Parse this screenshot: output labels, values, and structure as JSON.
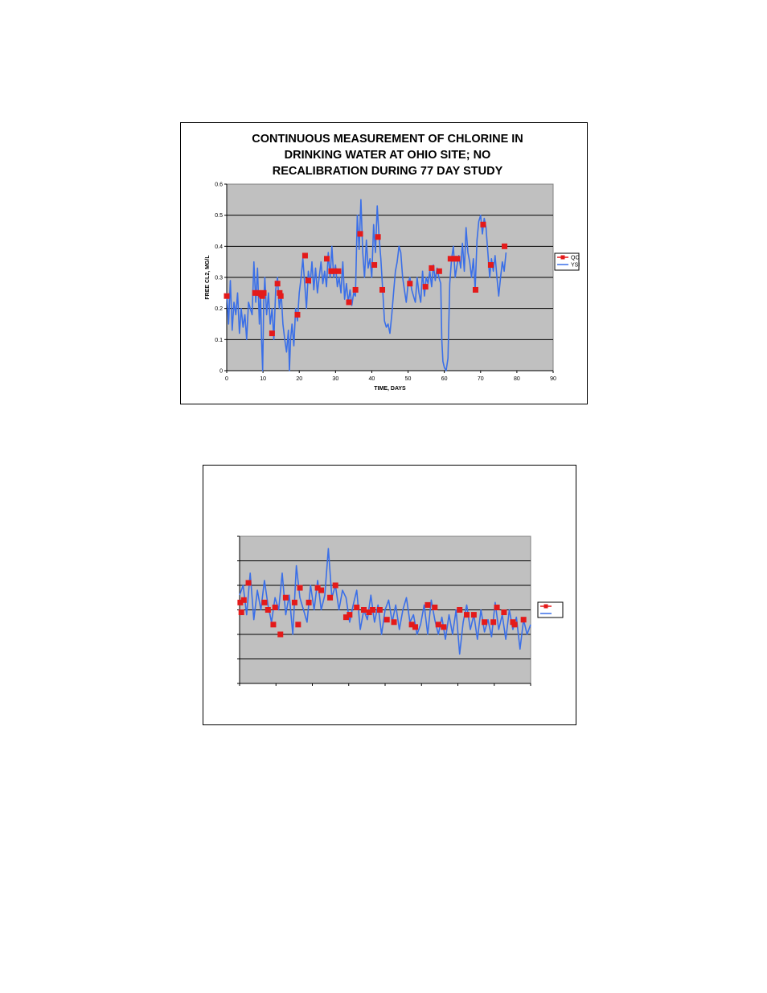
{
  "chart_data": [
    {
      "type": "line",
      "title": [
        "CONTINUOUS MEASUREMENT OF CHLORINE IN",
        "DRINKING WATER AT OHIO SITE; NO",
        "RECALIBRATION DURING 77 DAY STUDY"
      ],
      "xlabel": "TIME, DAYS",
      "ylabel": "FREE CL2, MG/L",
      "xlim": [
        0,
        90
      ],
      "ylim": [
        0,
        0.6
      ],
      "xticks": [
        "0",
        "10",
        "20",
        "30",
        "40",
        "50",
        "60",
        "70",
        "80",
        "90"
      ],
      "yticks": [
        "0",
        "0.1",
        "0.2",
        "0.3",
        "0.4",
        "0.5",
        "0.6"
      ],
      "grid": "horizontal",
      "legend_position": "right",
      "series": [
        {
          "name": "QC",
          "style": "scatter",
          "color": "#e41a1a",
          "x": [
            0,
            7.8,
            8.7,
            9.5,
            9.8,
            10.2,
            12.5,
            14,
            14.6,
            14.9,
            19.5,
            21.6,
            22.5,
            27.6,
            28.8,
            29.6,
            30.8,
            33.7,
            35.5,
            36.8,
            40.7,
            41.7,
            42.9,
            50.5,
            54.8,
            56.5,
            58.6,
            61.7,
            62.7,
            63.6,
            68.6,
            70.7,
            72.8,
            76.6
          ],
          "y": [
            0.24,
            0.25,
            0.25,
            0.245,
            0.24,
            0.25,
            0.12,
            0.28,
            0.25,
            0.24,
            0.18,
            0.37,
            0.29,
            0.36,
            0.32,
            0.32,
            0.32,
            0.22,
            0.26,
            0.44,
            0.34,
            0.43,
            0.26,
            0.28,
            0.27,
            0.33,
            0.32,
            0.36,
            0.36,
            0.36,
            0.26,
            0.47,
            0.34,
            0.4
          ]
        },
        {
          "name": "YSI",
          "style": "line",
          "color": "#3a6fe8",
          "x": [
            0,
            0.5,
            1,
            1.5,
            2,
            2.5,
            3,
            3.5,
            4,
            4.5,
            5,
            5.5,
            6,
            6.5,
            7,
            7.5,
            8,
            8.5,
            9,
            9.3,
            9.6,
            9.9,
            10.2,
            10.5,
            11,
            11.5,
            12,
            12.5,
            13,
            13.5,
            14,
            14.5,
            15,
            15.5,
            16,
            16.5,
            17,
            17.3,
            17.6,
            18,
            18.5,
            19,
            19.5,
            20,
            20.5,
            21,
            21.5,
            22,
            22.5,
            23,
            23.5,
            24,
            24.5,
            25,
            25.5,
            26,
            26.5,
            27,
            27.5,
            28,
            28.5,
            29,
            29.5,
            30,
            30.5,
            31,
            31.5,
            32,
            32.5,
            33,
            33.5,
            34,
            34.5,
            35,
            35.5,
            36,
            36.5,
            37,
            37.5,
            38,
            38.5,
            39,
            39.5,
            40,
            40.5,
            41,
            41.5,
            42,
            42.5,
            43,
            43.5,
            44,
            44.5,
            45,
            45.5,
            46,
            46.5,
            47,
            47.5,
            48,
            48.5,
            49,
            49.5,
            50,
            50.5,
            51,
            51.5,
            52,
            52.5,
            53,
            53.5,
            54,
            54.5,
            55,
            55.5,
            56,
            56.5,
            57,
            57.5,
            58,
            58.5,
            59,
            59.3,
            59.6,
            60,
            60.5,
            61,
            61.5,
            62,
            62.5,
            63,
            63.5,
            64,
            64.5,
            65,
            65.5,
            66,
            66.5,
            67,
            67.5,
            68,
            68.5,
            69,
            69.5,
            70,
            70.5,
            71,
            71.5,
            72,
            72.5,
            73,
            73.5,
            74,
            74.5,
            75,
            75.5,
            76,
            76.5,
            77
          ],
          "y": [
            0.25,
            0.15,
            0.29,
            0.13,
            0.22,
            0.18,
            0.25,
            0.12,
            0.2,
            0.14,
            0.18,
            0.1,
            0.22,
            0.2,
            0.18,
            0.35,
            0.22,
            0.33,
            0.15,
            0.25,
            0.1,
            0.0,
            0.22,
            0.3,
            0.18,
            0.25,
            0.15,
            0.2,
            0.1,
            0.26,
            0.3,
            0.2,
            0.25,
            0.15,
            0.1,
            0.06,
            0.13,
            0.0,
            0.1,
            0.15,
            0.08,
            0.2,
            0.16,
            0.25,
            0.3,
            0.36,
            0.28,
            0.2,
            0.32,
            0.28,
            0.35,
            0.26,
            0.33,
            0.25,
            0.3,
            0.35,
            0.28,
            0.32,
            0.27,
            0.38,
            0.3,
            0.4,
            0.3,
            0.34,
            0.27,
            0.3,
            0.25,
            0.35,
            0.23,
            0.28,
            0.22,
            0.26,
            0.21,
            0.25,
            0.24,
            0.5,
            0.39,
            0.55,
            0.38,
            0.3,
            0.42,
            0.33,
            0.36,
            0.3,
            0.47,
            0.38,
            0.53,
            0.43,
            0.36,
            0.26,
            0.16,
            0.14,
            0.15,
            0.12,
            0.18,
            0.25,
            0.32,
            0.35,
            0.4,
            0.38,
            0.3,
            0.26,
            0.22,
            0.28,
            0.3,
            0.26,
            0.24,
            0.22,
            0.3,
            0.25,
            0.22,
            0.32,
            0.24,
            0.3,
            0.28,
            0.32,
            0.27,
            0.34,
            0.29,
            0.33,
            0.3,
            0.28,
            0.1,
            0.03,
            0.01,
            0.0,
            0.04,
            0.28,
            0.36,
            0.4,
            0.3,
            0.34,
            0.37,
            0.33,
            0.41,
            0.32,
            0.46,
            0.38,
            0.35,
            0.3,
            0.36,
            0.26,
            0.42,
            0.48,
            0.5,
            0.44,
            0.49,
            0.46,
            0.38,
            0.3,
            0.36,
            0.32,
            0.37,
            0.3,
            0.24,
            0.3,
            0.35,
            0.32,
            0.38
          ]
        }
      ]
    },
    {
      "type": "line",
      "title": "",
      "xlabel": "",
      "ylabel": "",
      "xlim": [
        0,
        82
      ],
      "ylim": [
        0,
        0.6
      ],
      "xticks_count": 9,
      "yticks_count": 6,
      "grid": "horizontal",
      "legend_position": "right",
      "series": [
        {
          "name": "",
          "style": "scatter",
          "color": "#e41a1a",
          "x": [
            0.2,
            0.5,
            1.2,
            2.5,
            7,
            8,
            9.5,
            10,
            11.5,
            13,
            15.5,
            16.5,
            17,
            19.5,
            22,
            23,
            25.5,
            27,
            30,
            31,
            33,
            35,
            36.5,
            37.5,
            39.5,
            41.5,
            43.5,
            48.5,
            49.5,
            53,
            55,
            56,
            57.5,
            62,
            64,
            66,
            69,
            71.5,
            72.5,
            74.5,
            77,
            77.5,
            80
          ],
          "y": [
            0.33,
            0.29,
            0.34,
            0.41,
            0.33,
            0.3,
            0.24,
            0.31,
            0.2,
            0.35,
            0.33,
            0.24,
            0.39,
            0.33,
            0.39,
            0.38,
            0.35,
            0.4,
            0.27,
            0.28,
            0.31,
            0.3,
            0.29,
            0.3,
            0.3,
            0.26,
            0.25,
            0.24,
            0.23,
            0.32,
            0.31,
            0.24,
            0.23,
            0.3,
            0.28,
            0.28,
            0.25,
            0.25,
            0.31,
            0.29,
            0.25,
            0.24,
            0.26
          ]
        },
        {
          "name": "",
          "style": "line",
          "color": "#3a6fe8",
          "x": [
            0,
            1,
            2,
            3,
            4,
            5,
            6,
            7,
            8,
            9,
            10,
            11,
            12,
            13,
            14,
            15,
            16,
            17,
            18,
            19,
            20,
            21,
            22,
            23,
            24,
            25,
            26,
            27,
            28,
            29,
            30,
            31,
            32,
            33,
            34,
            35,
            36,
            37,
            38,
            39,
            40,
            41,
            42,
            43,
            44,
            45,
            46,
            47,
            48,
            49,
            50,
            51,
            52,
            53,
            54,
            55,
            56,
            57,
            58,
            59,
            60,
            61,
            62,
            63,
            64,
            65,
            66,
            67,
            68,
            69,
            70,
            71,
            72,
            73,
            74,
            75,
            76,
            77,
            78,
            79,
            80,
            81,
            82
          ],
          "y": [
            0.36,
            0.4,
            0.28,
            0.45,
            0.26,
            0.38,
            0.3,
            0.42,
            0.32,
            0.25,
            0.35,
            0.3,
            0.45,
            0.28,
            0.36,
            0.2,
            0.48,
            0.35,
            0.3,
            0.25,
            0.4,
            0.3,
            0.42,
            0.3,
            0.36,
            0.55,
            0.35,
            0.4,
            0.3,
            0.38,
            0.35,
            0.25,
            0.32,
            0.38,
            0.22,
            0.3,
            0.26,
            0.36,
            0.25,
            0.32,
            0.2,
            0.3,
            0.34,
            0.25,
            0.32,
            0.22,
            0.3,
            0.35,
            0.25,
            0.28,
            0.2,
            0.24,
            0.32,
            0.2,
            0.34,
            0.26,
            0.2,
            0.27,
            0.18,
            0.28,
            0.2,
            0.3,
            0.12,
            0.25,
            0.32,
            0.22,
            0.28,
            0.18,
            0.3,
            0.21,
            0.26,
            0.19,
            0.33,
            0.22,
            0.28,
            0.18,
            0.3,
            0.22,
            0.27,
            0.14,
            0.26,
            0.2,
            0.24
          ]
        }
      ]
    }
  ]
}
